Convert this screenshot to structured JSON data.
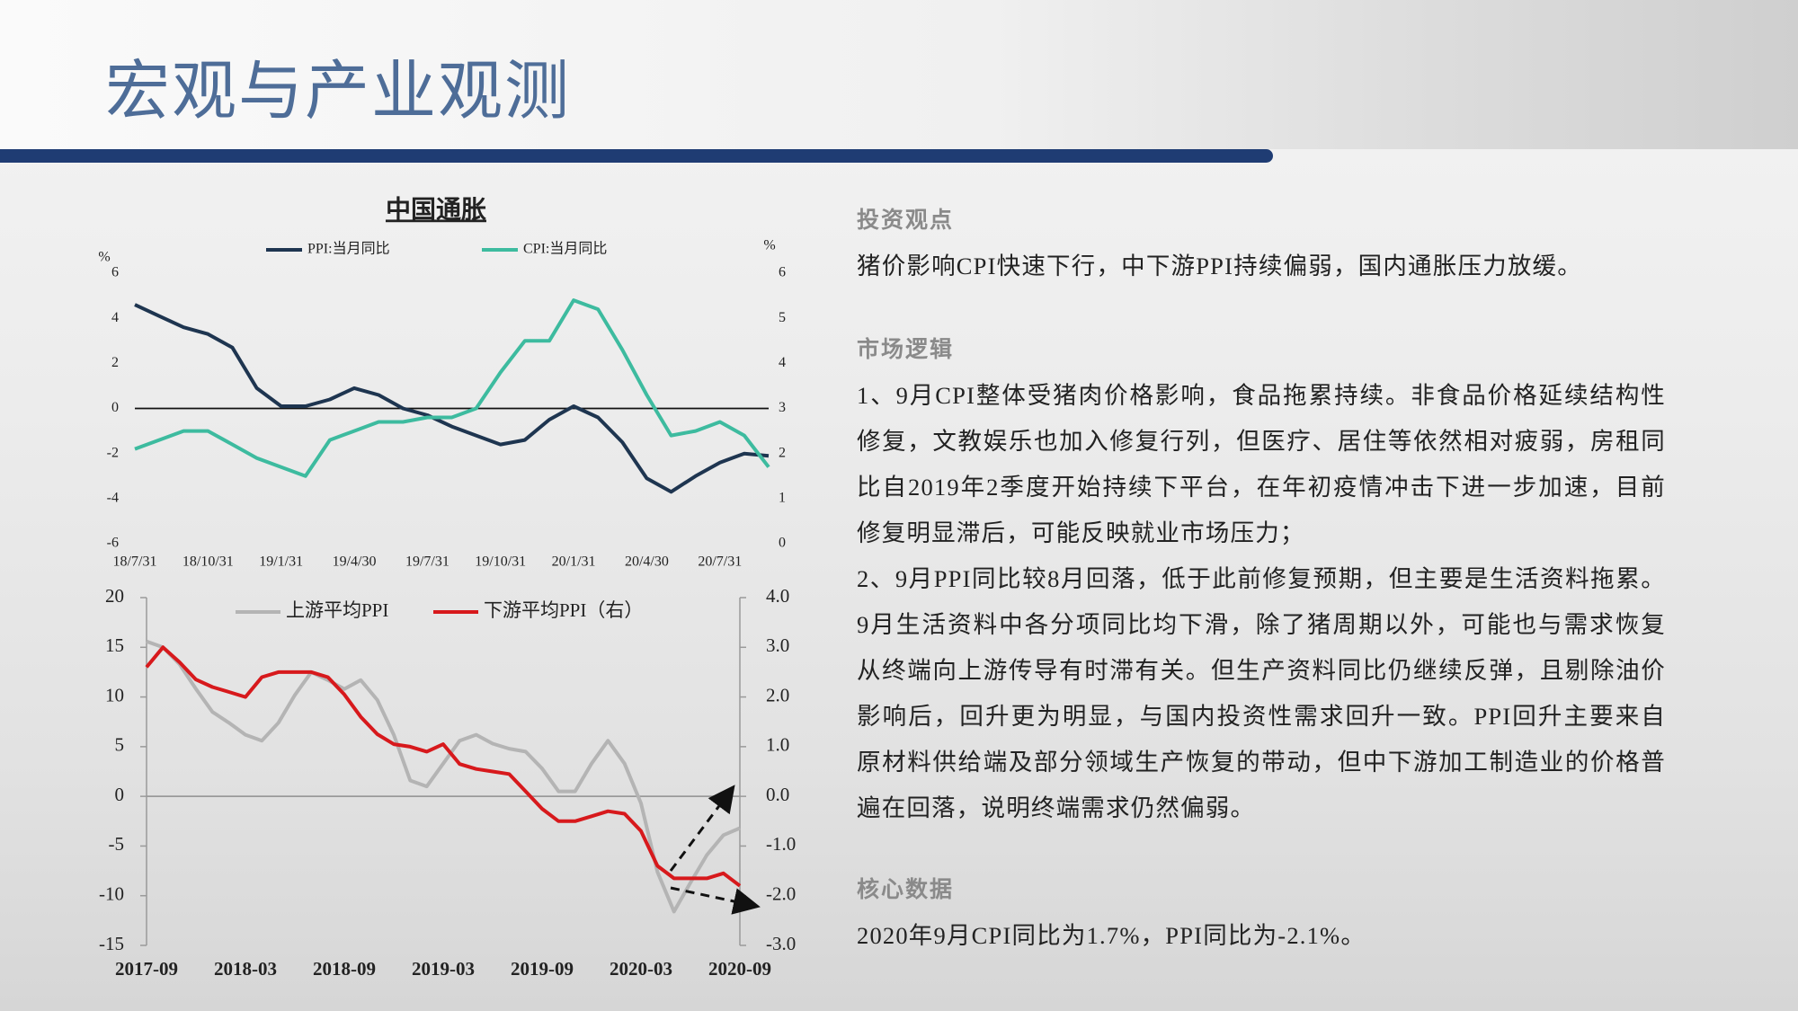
{
  "title": "宏观与产业观测",
  "chart_data": [
    {
      "type": "line",
      "title": "中国通胀",
      "ylabel": "%",
      "y2label": "%",
      "categories": [
        "18/7/31",
        null,
        null,
        "18/10/31",
        null,
        null,
        "19/1/31",
        null,
        null,
        "19/4/30",
        null,
        null,
        "19/7/31",
        null,
        null,
        "19/10/31",
        null,
        null,
        "20/1/31",
        null,
        null,
        "20/4/30",
        null,
        null,
        "20/7/31",
        null,
        null
      ],
      "series": [
        {
          "name": "PPI:当月同比",
          "color": "#1e3550",
          "values": [
            4.6,
            4.1,
            3.6,
            3.3,
            2.7,
            0.9,
            0.1,
            0.1,
            0.4,
            0.9,
            0.6,
            0.0,
            -0.3,
            -0.8,
            -1.2,
            -1.6,
            -1.4,
            -0.5,
            0.1,
            -0.4,
            -1.5,
            -3.1,
            -3.7,
            -3.0,
            -2.4,
            -2.0,
            -2.1
          ]
        },
        {
          "name": "CPI:当月同比",
          "color": "#3dbb9f",
          "axis": "y2",
          "values": [
            2.1,
            2.3,
            2.5,
            2.5,
            2.2,
            1.9,
            1.7,
            1.5,
            2.3,
            2.5,
            2.7,
            2.7,
            2.8,
            2.8,
            3.0,
            3.8,
            4.5,
            4.5,
            5.4,
            5.2,
            4.3,
            3.3,
            2.4,
            2.5,
            2.7,
            2.4,
            1.7
          ]
        }
      ],
      "ylim": [
        -6,
        6
      ],
      "yticks": [
        -6,
        -4,
        -2,
        0,
        2,
        4,
        6
      ],
      "y2lim": [
        0,
        6
      ],
      "y2ticks": [
        0,
        1,
        2,
        3,
        4,
        5,
        6
      ]
    },
    {
      "type": "line",
      "categories": [
        "2017-09",
        null,
        null,
        null,
        null,
        null,
        "2018-03",
        null,
        null,
        null,
        null,
        null,
        "2018-09",
        null,
        null,
        null,
        null,
        null,
        "2019-03",
        null,
        null,
        null,
        null,
        null,
        "2019-09",
        null,
        null,
        null,
        null,
        null,
        "2020-03",
        null,
        null,
        null,
        null,
        null,
        "2020-09"
      ],
      "series": [
        {
          "name": "上游平均PPI",
          "color": "#b4b4b4",
          "values": [
            15.6,
            15.0,
            13.3,
            10.8,
            8.5,
            7.4,
            6.2,
            5.6,
            7.4,
            10.2,
            12.5,
            11.7,
            10.8,
            11.7,
            9.7,
            6.2,
            1.6,
            1.0,
            3.3,
            5.6,
            6.2,
            5.3,
            4.8,
            4.5,
            2.8,
            0.5,
            0.5,
            3.3,
            5.6,
            3.3,
            -0.7,
            -7.6,
            -11.6,
            -8.7,
            -5.9,
            -3.9,
            -3.2
          ]
        },
        {
          "name": "下游平均PPI（右）",
          "color": "#d7191c",
          "axis": "y2",
          "values": [
            2.6,
            3.0,
            2.7,
            2.35,
            2.2,
            2.1,
            2.0,
            2.4,
            2.5,
            2.5,
            2.5,
            2.4,
            2.05,
            1.6,
            1.25,
            1.05,
            1.0,
            0.9,
            1.05,
            0.65,
            0.55,
            0.5,
            0.45,
            0.1,
            -0.25,
            -0.5,
            -0.5,
            -0.4,
            -0.3,
            -0.35,
            -0.7,
            -1.4,
            -1.65,
            -1.65,
            -1.65,
            -1.55,
            -1.8
          ]
        }
      ],
      "ylim": [
        -15,
        20
      ],
      "yticks": [
        -15,
        -10,
        -5,
        0,
        5,
        10,
        15,
        20
      ],
      "y2lim": [
        -3,
        4
      ],
      "y2ticks": [
        {
          "value": -3,
          "label": "-3.0"
        },
        {
          "value": -2,
          "label": "-2.0"
        },
        {
          "value": -1,
          "label": "-1.0"
        },
        {
          "value": 0,
          "label": "0.0"
        },
        {
          "value": 1,
          "label": "1.0"
        },
        {
          "value": 2,
          "label": "2.0"
        },
        {
          "value": 3,
          "label": "3.0"
        },
        {
          "value": 4,
          "label": "4.0"
        }
      ]
    }
  ],
  "sections": [
    {
      "heading": "投资观点",
      "paragraphs": [
        "猪价影响CPI快速下行，中下游PPI持续偏弱，国内通胀压力放缓。"
      ]
    },
    {
      "heading": "市场逻辑",
      "paragraphs": [
        "1、9月CPI整体受猪肉价格影响，食品拖累持续。非食品价格延续结构性修复，文教娱乐也加入修复行列，但医疗、居住等依然相对疲弱，房租同比自2019年2季度开始持续下平台，在年初疫情冲击下进一步加速，目前修复明显滞后，可能反映就业市场压力；",
        "2、9月PPI同比较8月回落，低于此前修复预期，但主要是生活资料拖累。9月生活资料中各分项同比均下滑，除了猪周期以外，可能也与需求恢复从终端向上游传导有时滞有关。但生产资料同比仍继续反弹，且剔除油价影响后，回升更为明显，与国内投资性需求回升一致。PPI回升主要来自原材料供给端及部分领域生产恢复的带动，但中下游加工制造业的价格普遍在回落，说明终端需求仍然偏弱。"
      ]
    },
    {
      "heading": "核心数据",
      "paragraphs": [
        "2020年9月CPI同比为1.7%，PPI同比为-2.1%。"
      ]
    }
  ]
}
